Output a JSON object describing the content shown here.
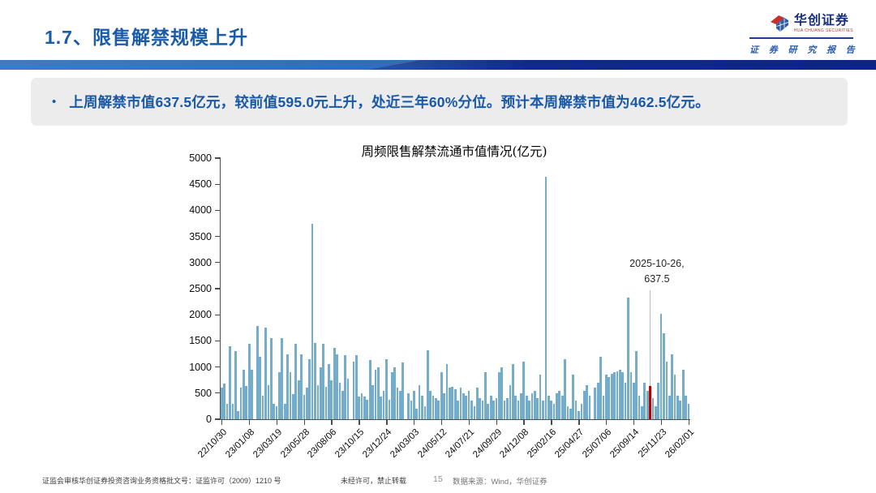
{
  "header": {
    "title": "1.7、限售解禁规模上升",
    "logo": {
      "name": "华创证券",
      "name_en": "HUA CHUANG SECURITIES",
      "tagline": "证 券 研 究 报 告",
      "brand_navy": "#152F7E",
      "brand_red": "#C9302C"
    }
  },
  "summary": {
    "bullet": "•",
    "text": "上周解禁市值637.5亿元，较前值595.0元上升，处近三年60%分位。预计本周解禁市值为462.5亿元。"
  },
  "chart_data": {
    "type": "bar",
    "title": "周频限售解禁流通市值情况(亿元)",
    "xlabel": "",
    "ylabel": "",
    "ylim": [
      0,
      5000
    ],
    "ytick_step": 500,
    "grid": false,
    "legend": false,
    "bar_color": "#74ADCB",
    "highlight_color": "#C00000",
    "axis_color": "#4d4d4d",
    "xtick_every": 10,
    "xtick_labels": [
      "22/10/30",
      "23/01/08",
      "23/03/19",
      "23/05/28",
      "23/08/06",
      "23/10/15",
      "23/12/24",
      "24/03/03",
      "24/05/12",
      "24/07/21",
      "24/09/29",
      "24/12/08",
      "25/02/16",
      "25/04/27",
      "25/07/06",
      "25/09/14",
      "25/11/23",
      "26/02/01"
    ],
    "values": [
      600,
      680,
      300,
      1390,
      300,
      1300,
      150,
      600,
      950,
      640,
      1450,
      950,
      0,
      1790,
      1200,
      450,
      1750,
      650,
      1550,
      300,
      250,
      900,
      1550,
      300,
      1250,
      900,
      480,
      1450,
      750,
      1250,
      470,
      600,
      1150,
      3750,
      1460,
      650,
      1000,
      1450,
      620,
      1050,
      750,
      1360,
      1250,
      700,
      550,
      1230,
      780,
      0,
      1100,
      1230,
      430,
      500,
      430,
      380,
      1130,
      650,
      950,
      1000,
      430,
      550,
      1150,
      380,
      900,
      1000,
      600,
      550,
      1080,
      0,
      500,
      350,
      550,
      200,
      650,
      450,
      250,
      1320,
      550,
      450,
      400,
      350,
      900,
      500,
      1050,
      600,
      620,
      580,
      350,
      600,
      500,
      450,
      550,
      350,
      250,
      600,
      400,
      350,
      900,
      300,
      450,
      350,
      400,
      900,
      1000,
      350,
      400,
      650,
      1050,
      450,
      350,
      500,
      1100,
      450,
      350,
      500,
      550,
      400,
      850,
      350,
      4650,
      450,
      350,
      300,
      500,
      550,
      450,
      1150,
      250,
      200,
      850,
      350,
      150,
      300,
      550,
      650,
      450,
      0,
      600,
      700,
      1200,
      450,
      850,
      800,
      870,
      900,
      920,
      950,
      900,
      700,
      2330,
      900,
      700,
      1300,
      450,
      250,
      700,
      550,
      637.5,
      400,
      250,
      700,
      2020,
      1650,
      1100,
      450,
      1250,
      850,
      450,
      350,
      950,
      450,
      300
    ],
    "highlight_index": 156,
    "highlight_value": 637.5,
    "annotation": {
      "line1": "2025-10-26,",
      "line2": "637.5"
    }
  },
  "footer": {
    "license": "证监会审核华创证券投资咨询业务资格批文号：证监许可（2009）1210 号",
    "notice": "未经许可，禁止转载",
    "page": "15",
    "source": "数据来源：Wind，华创证券"
  }
}
